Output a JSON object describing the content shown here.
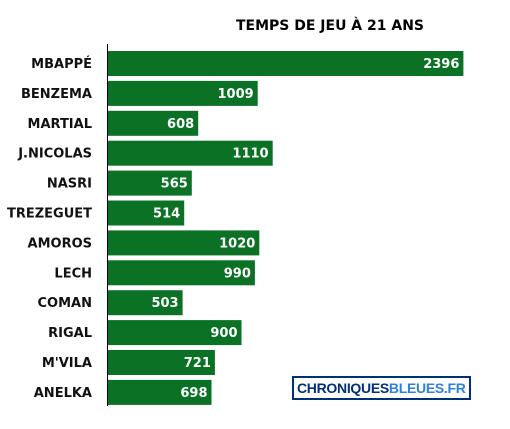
{
  "chart_data": {
    "type": "bar",
    "orientation": "horizontal",
    "title": "TEMPS DE JEU À 21 ANS",
    "categories": [
      "MBAPPÉ",
      "BENZEMA",
      "MARTIAL",
      "J.NICOLAS",
      "NASRI",
      "TREZEGUET",
      "AMOROS",
      "LECH",
      "COMAN",
      "RIGAL",
      "M'VILA",
      "ANELKA"
    ],
    "values": [
      2396,
      1009,
      608,
      1110,
      565,
      514,
      1020,
      990,
      503,
      900,
      721,
      698
    ],
    "xlim": [
      0,
      2400
    ],
    "grid": false,
    "legend": "none",
    "bar_color": "#0b7225",
    "value_label_color": "#ffffff"
  },
  "watermark": {
    "part1": "CHRONIQUES",
    "part2": "BLEUES.FR",
    "color_dark": "#00307a",
    "color_light": "#2f82d8"
  }
}
